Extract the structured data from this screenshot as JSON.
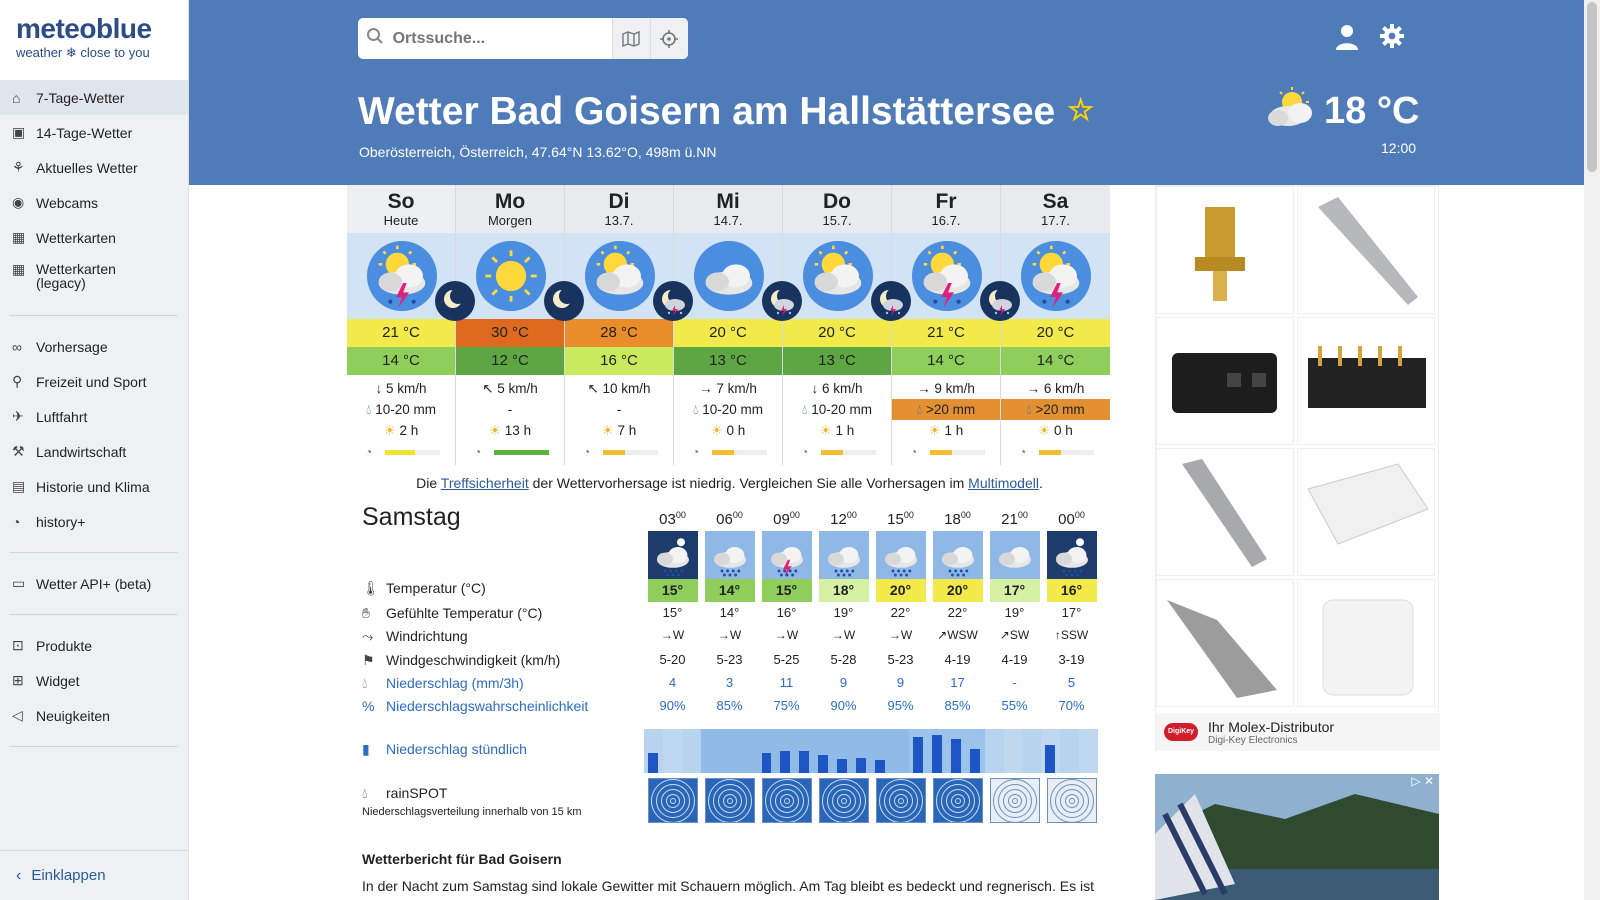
{
  "logo": {
    "main": "meteoblue",
    "sub": "weather ❄ close to you"
  },
  "sidebar": {
    "items": [
      {
        "label": "7-Tage-Wetter",
        "icon": "home-icon",
        "glyph": "⌂",
        "active": true
      },
      {
        "label": "14-Tage-Wetter",
        "icon": "calendar-14-icon",
        "glyph": "▣"
      },
      {
        "label": "Aktuelles Wetter",
        "icon": "current-weather-icon",
        "glyph": "⚘"
      },
      {
        "label": "Webcams",
        "icon": "webcam-icon",
        "glyph": "◉"
      },
      {
        "label": "Wetterkarten",
        "icon": "map-icon",
        "glyph": "▦"
      },
      {
        "label": "Wetterkarten",
        "label2": "(legacy)",
        "icon": "map-legacy-icon",
        "glyph": "▦"
      }
    ],
    "items2": [
      {
        "label": "Vorhersage",
        "icon": "binoculars-icon",
        "glyph": "∞"
      },
      {
        "label": "Freizeit und Sport",
        "icon": "hiking-icon",
        "glyph": "⚲"
      },
      {
        "label": "Luftfahrt",
        "icon": "airplane-icon",
        "glyph": "✈"
      },
      {
        "label": "Landwirtschaft",
        "icon": "agriculture-icon",
        "glyph": "⚒"
      },
      {
        "label": "Historie und Klima",
        "icon": "history-chart-icon",
        "glyph": "▤"
      },
      {
        "label": "history+",
        "icon": "history-plus-icon",
        "glyph": "◔"
      }
    ],
    "items3": [
      {
        "label": "Wetter API+ (beta)",
        "icon": "api-icon",
        "glyph": "▭"
      }
    ],
    "items4": [
      {
        "label": "Produkte",
        "icon": "cart-icon",
        "glyph": "⊡"
      },
      {
        "label": "Widget",
        "icon": "widget-icon",
        "glyph": "⊞"
      },
      {
        "label": "Neuigkeiten",
        "icon": "megaphone-icon",
        "glyph": "◁"
      }
    ],
    "collapse": "Einklappen"
  },
  "search": {
    "placeholder": "Ortssuche..."
  },
  "location": {
    "title": "Wetter Bad Goisern am Hallstättersee",
    "subtitle": "Oberösterreich, Österreich, 47.64°N 13.62°O, 498m ü.NN",
    "current_temp": "18 °C",
    "current_time": "12:00"
  },
  "days": [
    {
      "name": "So",
      "date": "Heute",
      "icon": "thunder-sun",
      "tmax": "21 °C",
      "tmax_color": "#f2ea4a",
      "tmin": "14 °C",
      "tmin_color": "#8fce5a",
      "wind_arrow": "↓",
      "wind": "5 km/h",
      "precip": "10-20 mm",
      "precip_hl": false,
      "sun": "2 h",
      "pred_fill": 0.55,
      "pred_color": "#f2e332"
    },
    {
      "name": "Mo",
      "date": "Morgen",
      "icon": "sun",
      "tmax": "30 °C",
      "tmax_color": "#de6a1f",
      "tmin": "12 °C",
      "tmin_color": "#5ea643",
      "wind_arrow": "↖",
      "wind": "5 km/h",
      "precip": "-",
      "precip_hl": false,
      "sun": "13 h",
      "pred_fill": 1,
      "pred_color": "#5bb33c"
    },
    {
      "name": "Di",
      "date": "13.7.",
      "icon": "sun-cloud",
      "tmax": "28 °C",
      "tmax_color": "#e98c2a",
      "tmin": "16 °C",
      "tmin_color": "#c8eb5d",
      "wind_arrow": "↖",
      "wind": "10 km/h",
      "precip": "-",
      "precip_hl": false,
      "sun": "7 h",
      "pred_fill": 0.4,
      "pred_color": "#f2bd2e"
    },
    {
      "name": "Mi",
      "date": "14.7.",
      "icon": "cloud",
      "tmax": "20 °C",
      "tmax_color": "#f2ea4a",
      "tmin": "13 °C",
      "tmin_color": "#5ea643",
      "wind_arrow": "→",
      "wind": "7 km/h",
      "precip": "10-20 mm",
      "precip_hl": false,
      "sun": "0 h",
      "pred_fill": 0.4,
      "pred_color": "#f2bd2e"
    },
    {
      "name": "Do",
      "date": "15.7.",
      "icon": "sun-cloud",
      "tmax": "20 °C",
      "tmax_color": "#f2ea4a",
      "tmin": "13 °C",
      "tmin_color": "#5ea643",
      "wind_arrow": "↓",
      "wind": "6 km/h",
      "precip": "10-20 mm",
      "precip_hl": false,
      "sun": "1 h",
      "pred_fill": 0.4,
      "pred_color": "#f2bd2e"
    },
    {
      "name": "Fr",
      "date": "16.7.",
      "icon": "thunder-sun",
      "tmax": "21 °C",
      "tmax_color": "#f2ea4a",
      "tmin": "14 °C",
      "tmin_color": "#8fce5a",
      "wind_arrow": "→",
      "wind": "9 km/h",
      "precip": ">20 mm",
      "precip_hl": true,
      "sun": "1 h",
      "pred_fill": 0.4,
      "pred_color": "#f2bd2e"
    },
    {
      "name": "Sa",
      "date": "17.7.",
      "icon": "thunder-sun",
      "tmax": "20 °C",
      "tmax_color": "#f2ea4a",
      "tmin": "14 °C",
      "tmin_color": "#8fce5a",
      "wind_arrow": "→",
      "wind": "6 km/h",
      "precip": ">20 mm",
      "precip_hl": true,
      "sun": "0 h",
      "pred_fill": 0.4,
      "pred_color": "#f2bd2e"
    }
  ],
  "note": {
    "pre": "Die ",
    "link1": "Treffsicherheit",
    "mid": " der Wettervorhersage ist niedrig. Vergleichen Sie alle Vorhersagen im ",
    "link2": "Multimodell",
    "post": "."
  },
  "detail": {
    "day_title": "Samstag",
    "row_labels": {
      "temp": "Temperatur (°C)",
      "felt": "Gefühlte Temperatur (°C)",
      "wind_dir": "Windrichtung",
      "wind_speed": "Windgeschwindigkeit (km/h)",
      "precip": "Niederschlag (mm/3h)",
      "precip_prob": "Niederschlagswahrscheinlichkeit",
      "precip_hourly": "Niederschlag stündlich",
      "rainspot": "rainSPOT",
      "rainspot_sub": "Niederschlagsverteilung innerhalb von 15 km"
    },
    "hours": [
      {
        "time": "03",
        "icon": "night-cloud-rain",
        "night": true,
        "temp": "15°",
        "temp_color": "#8fce5a",
        "felt": "15°",
        "wind_dir": "W",
        "wind_arrow": "→",
        "wind_speed": "5-20",
        "precip": "4",
        "prob": "90%"
      },
      {
        "time": "06",
        "icon": "cloud-rain",
        "night": false,
        "temp": "14°",
        "temp_color": "#8fce5a",
        "felt": "14°",
        "wind_dir": "W",
        "wind_arrow": "→",
        "wind_speed": "5-23",
        "precip": "3",
        "prob": "85%"
      },
      {
        "time": "09",
        "icon": "cloud-thunder",
        "night": false,
        "temp": "15°",
        "temp_color": "#8fce5a",
        "felt": "16°",
        "wind_dir": "W",
        "wind_arrow": "→",
        "wind_speed": "5-25",
        "precip": "11",
        "prob": "75%"
      },
      {
        "time": "12",
        "icon": "cloud-rain",
        "night": false,
        "temp": "18°",
        "temp_color": "#d6f1a4",
        "felt": "19°",
        "wind_dir": "W",
        "wind_arrow": "→",
        "wind_speed": "5-28",
        "precip": "9",
        "prob": "90%"
      },
      {
        "time": "15",
        "icon": "cloud-rain",
        "night": false,
        "temp": "20°",
        "temp_color": "#f2ea4a",
        "felt": "22°",
        "wind_dir": "W",
        "wind_arrow": "→",
        "wind_speed": "5-23",
        "precip": "9",
        "prob": "95%"
      },
      {
        "time": "18",
        "icon": "cloud-rain",
        "night": false,
        "temp": "20°",
        "temp_color": "#f2ea4a",
        "felt": "22°",
        "wind_dir": "WSW",
        "wind_arrow": "↗",
        "wind_speed": "4-19",
        "precip": "17",
        "prob": "85%"
      },
      {
        "time": "21",
        "icon": "cloud",
        "night": false,
        "temp": "17°",
        "temp_color": "#d6f1a4",
        "felt": "19°",
        "wind_dir": "SW",
        "wind_arrow": "↗",
        "wind_speed": "4-19",
        "precip": "-",
        "prob": "55%"
      },
      {
        "time": "00",
        "icon": "night-cloud-rain",
        "night": true,
        "temp": "16°",
        "temp_color": "#f2ea4a",
        "felt": "17°",
        "wind_dir": "SSW",
        "wind_arrow": "↑",
        "wind_speed": "3-19",
        "precip": "5",
        "prob": "70%"
      }
    ],
    "hourly_precip": [
      0.5,
      0,
      0,
      0,
      0,
      0,
      0.5,
      0.55,
      0.55,
      0.45,
      0.35,
      0.38,
      0.33,
      0,
      0.9,
      0.95,
      0.85,
      0.6,
      0,
      0,
      0,
      0.7,
      0,
      0
    ]
  },
  "report": {
    "title": "Wetterbericht für Bad Goisern",
    "text": "In der Nacht zum Samstag sind lokale Gewitter mit Schauern möglich. Am Tag bleibt es bedeckt und regnerisch. Es ist"
  },
  "ad": {
    "title": "Ihr Molex-Distributor",
    "subtitle": "Digi-Key Electronics",
    "logo_text": "DigiKey"
  }
}
